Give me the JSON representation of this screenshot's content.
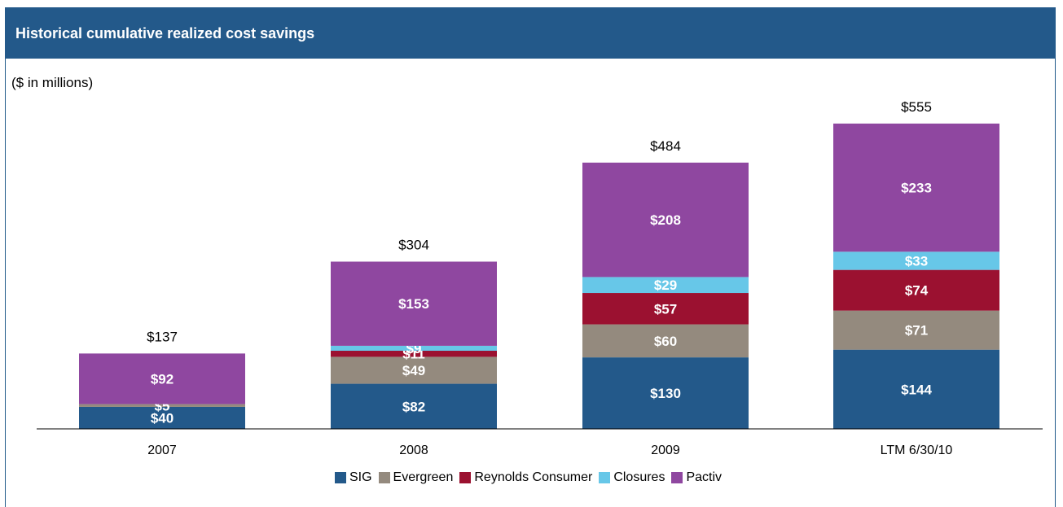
{
  "header": {
    "title": "Historical cumulative realized cost savings"
  },
  "subtitle": "($ in millions)",
  "chart_data": {
    "type": "bar",
    "stacked": true,
    "categories": [
      "2007",
      "2008",
      "2009",
      "LTM 6/30/10"
    ],
    "totals": [
      "$137",
      "$304",
      "$484",
      "$555"
    ],
    "ylim": [
      0,
      600
    ],
    "series": [
      {
        "name": "SIG",
        "color": "#23598a",
        "values": [
          40,
          82,
          130,
          144
        ],
        "labels": [
          "$40",
          "$82",
          "$130",
          "$144"
        ]
      },
      {
        "name": "Evergreen",
        "color": "#948a7e",
        "values": [
          5,
          49,
          60,
          71
        ],
        "labels": [
          "$5",
          "$49",
          "$60",
          "$71"
        ]
      },
      {
        "name": "Reynolds Consumer",
        "color": "#9b1130",
        "values": [
          0,
          11,
          57,
          74
        ],
        "labels": [
          "",
          "$11",
          "$57",
          "$74"
        ]
      },
      {
        "name": "Closures",
        "color": "#67c7e8",
        "values": [
          0,
          9,
          29,
          33
        ],
        "labels": [
          "",
          "$9",
          "$29",
          "$33"
        ]
      },
      {
        "name": "Pactiv",
        "color": "#8f47a0",
        "values": [
          92,
          153,
          208,
          233
        ],
        "labels": [
          "$92",
          "$153",
          "$208",
          "$233"
        ]
      }
    ],
    "legend_position": "bottom-center",
    "grid": false
  }
}
